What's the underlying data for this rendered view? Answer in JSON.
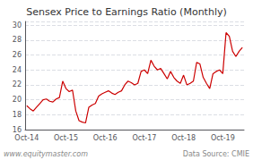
{
  "chart_data": {
    "type": "line",
    "title": "Sensex Price to Earnings Ratio (Monthly)",
    "categories": [
      "Oct-14",
      null,
      null,
      null,
      null,
      null,
      null,
      null,
      null,
      null,
      null,
      null,
      "Oct-15",
      null,
      null,
      null,
      null,
      null,
      null,
      null,
      null,
      null,
      null,
      null,
      "Oct-16",
      null,
      null,
      null,
      null,
      null,
      null,
      null,
      null,
      null,
      null,
      null,
      "Oct-17",
      null,
      null,
      null,
      null,
      null,
      null,
      null,
      null,
      null,
      null,
      null,
      "Oct-18",
      null,
      null,
      null,
      null,
      null,
      null,
      null,
      null,
      null,
      null,
      null,
      "Oct-19",
      null,
      null,
      null,
      null,
      null,
      null
    ],
    "values": [
      19.2,
      18.8,
      18.5,
      19.0,
      19.5,
      20.0,
      20.1,
      19.8,
      19.7,
      20.1,
      20.3,
      22.5,
      21.5,
      21.1,
      21.3,
      18.5,
      17.2,
      17.0,
      16.9,
      19.0,
      19.3,
      19.5,
      20.5,
      20.8,
      21.0,
      21.2,
      20.9,
      20.7,
      21.0,
      21.2,
      22.0,
      22.5,
      22.3,
      22.0,
      22.2,
      23.8,
      24.0,
      23.5,
      25.3,
      24.5,
      24.0,
      24.2,
      23.5,
      22.8,
      23.8,
      23.0,
      22.5,
      22.2,
      23.3,
      22.0,
      22.2,
      22.5,
      25.0,
      24.8,
      23.0,
      22.2,
      21.5,
      23.5,
      23.8,
      24.0,
      23.5,
      29.0,
      28.5,
      26.5,
      25.8,
      26.5,
      27.0
    ],
    "color": "#cc0000",
    "ylim": [
      16,
      30.5
    ],
    "yticks": [
      16,
      18,
      20,
      22,
      24,
      26,
      28,
      30
    ],
    "grid": true,
    "annotations": [
      "www.equitymaster.com",
      "Data Source: CMIE"
    ]
  }
}
